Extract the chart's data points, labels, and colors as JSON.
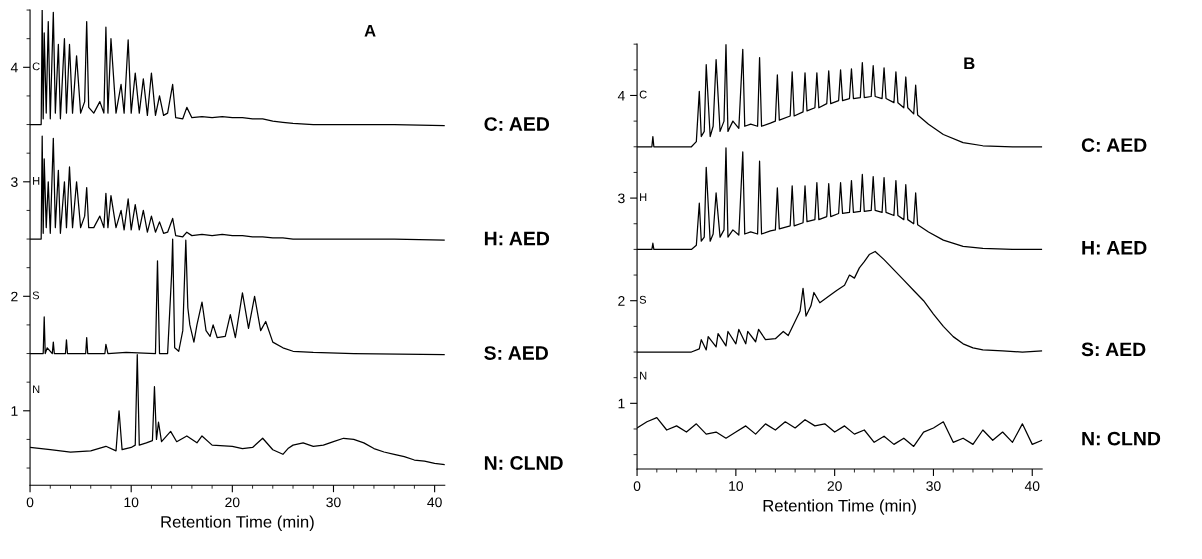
{
  "chart_data": [
    {
      "type": "line",
      "title": "A",
      "xlabel": "Retention Time (min)",
      "xlim": [
        0,
        41
      ],
      "xticks": [
        0,
        10,
        20,
        30,
        40
      ],
      "ylim": [
        0.35,
        4.5
      ],
      "yticks": [
        1,
        2,
        3,
        4
      ],
      "grid": false,
      "legend": false,
      "marker": "none",
      "line_style": "solid",
      "series": [
        {
          "name": "C: AED",
          "color": "#000000",
          "x": [
            0,
            1.1,
            1.2,
            1.3,
            1.4,
            1.6,
            1.8,
            2.0,
            2.3,
            2.5,
            2.8,
            3.0,
            3.4,
            3.6,
            3.9,
            4.2,
            4.6,
            5.0,
            5.4,
            5.6,
            5.8,
            6.3,
            6.9,
            7.3,
            7.5,
            7.7,
            8.0,
            8.5,
            9.0,
            9.3,
            9.7,
            10.0,
            10.4,
            10.8,
            11.2,
            11.6,
            12.0,
            12.4,
            12.8,
            13.2,
            13.6,
            14.1,
            14.4,
            15.1,
            15.5,
            16,
            17,
            18,
            19,
            20,
            21,
            22,
            23,
            24,
            25,
            26,
            28,
            32,
            36,
            41
          ],
          "values": [
            3.5,
            3.5,
            4.5,
            3.55,
            4.3,
            3.6,
            4.4,
            3.55,
            4.48,
            3.6,
            4.2,
            3.55,
            4.25,
            3.6,
            4.2,
            3.6,
            4.1,
            3.6,
            3.7,
            4.4,
            3.65,
            3.6,
            3.7,
            3.6,
            4.35,
            3.6,
            4.25,
            3.6,
            3.85,
            3.6,
            4.24,
            3.6,
            3.95,
            3.6,
            3.9,
            3.58,
            3.95,
            3.58,
            3.75,
            3.58,
            3.6,
            3.85,
            3.56,
            3.55,
            3.65,
            3.56,
            3.57,
            3.56,
            3.57,
            3.56,
            3.56,
            3.55,
            3.55,
            3.53,
            3.52,
            3.51,
            3.5,
            3.5,
            3.5,
            3.49
          ]
        },
        {
          "name": "H: AED",
          "color": "#000000",
          "x": [
            0,
            1.1,
            1.2,
            1.3,
            1.4,
            1.6,
            1.8,
            2.0,
            2.3,
            2.5,
            2.8,
            3.0,
            3.4,
            3.6,
            3.9,
            4.2,
            4.6,
            5.0,
            5.4,
            5.6,
            5.8,
            6.3,
            6.9,
            7.3,
            7.5,
            7.7,
            8.0,
            8.5,
            9.0,
            9.3,
            9.7,
            10.0,
            10.4,
            10.8,
            11.2,
            11.6,
            12.0,
            12.4,
            12.8,
            13.2,
            13.6,
            14.1,
            14.4,
            15.1,
            15.5,
            16,
            17,
            18,
            19,
            20,
            21,
            22,
            23,
            24,
            25,
            26,
            28,
            32,
            36,
            41
          ],
          "values": [
            2.5,
            2.5,
            3.4,
            2.55,
            3.2,
            2.6,
            3.0,
            2.55,
            3.38,
            2.6,
            3.1,
            2.55,
            3.0,
            2.6,
            3.13,
            2.6,
            3.0,
            2.6,
            2.7,
            2.95,
            2.6,
            2.6,
            2.7,
            2.6,
            2.9,
            2.6,
            2.88,
            2.6,
            2.75,
            2.58,
            2.85,
            2.58,
            2.8,
            2.58,
            2.75,
            2.56,
            2.7,
            2.56,
            2.65,
            2.55,
            2.56,
            2.68,
            2.53,
            2.52,
            2.56,
            2.53,
            2.54,
            2.53,
            2.54,
            2.53,
            2.53,
            2.52,
            2.52,
            2.51,
            2.51,
            2.5,
            2.5,
            2.5,
            2.5,
            2.49
          ]
        },
        {
          "name": "S: AED",
          "color": "#000000",
          "x": [
            0,
            1.3,
            1.4,
            1.5,
            1.7,
            2.2,
            2.3,
            2.4,
            3.5,
            3.6,
            3.7,
            5.5,
            5.6,
            5.7,
            7.4,
            7.5,
            7.7,
            9.5,
            12.4,
            12.6,
            12.8,
            13.6,
            14.0,
            14.1,
            14.3,
            14.7,
            15.1,
            15.4,
            15.6,
            15.8,
            16.2,
            16.5,
            17.0,
            17.4,
            17.8,
            18.1,
            18.5,
            19.3,
            19.8,
            20.3,
            21.0,
            21.6,
            22.2,
            22.8,
            23.3,
            24.0,
            25,
            26,
            28,
            32,
            41
          ],
          "values": [
            1.5,
            1.5,
            1.82,
            1.5,
            1.55,
            1.5,
            1.6,
            1.5,
            1.5,
            1.62,
            1.5,
            1.5,
            1.64,
            1.5,
            1.5,
            1.58,
            1.5,
            1.51,
            1.5,
            2.31,
            1.5,
            1.5,
            2.2,
            2.5,
            1.55,
            1.52,
            1.7,
            2.49,
            1.9,
            1.75,
            1.6,
            1.75,
            1.95,
            1.7,
            1.65,
            1.75,
            1.64,
            1.65,
            1.84,
            1.64,
            2.03,
            1.72,
            2.0,
            1.7,
            1.78,
            1.6,
            1.55,
            1.52,
            1.51,
            1.5,
            1.49
          ]
        },
        {
          "name": "N: CLND",
          "color": "#000000",
          "x": [
            0,
            2,
            4,
            6,
            7.5,
            8.5,
            8.8,
            9.1,
            10.0,
            10.4,
            10.6,
            10.8,
            11.5,
            12.1,
            12.3,
            12.5,
            12.7,
            13.0,
            13.9,
            14.5,
            15.5,
            16.5,
            17,
            18,
            20,
            21,
            22,
            23,
            24,
            25,
            25.5,
            26,
            27,
            28,
            29,
            30,
            31,
            32,
            33,
            34,
            35,
            36,
            37,
            38,
            39,
            40,
            41
          ],
          "values": [
            0.68,
            0.66,
            0.64,
            0.65,
            0.69,
            0.65,
            1.0,
            0.66,
            0.68,
            0.7,
            1.49,
            0.7,
            0.72,
            0.74,
            1.21,
            0.75,
            0.9,
            0.73,
            0.82,
            0.73,
            0.78,
            0.72,
            0.78,
            0.7,
            0.69,
            0.67,
            0.68,
            0.76,
            0.66,
            0.62,
            0.67,
            0.7,
            0.72,
            0.69,
            0.7,
            0.73,
            0.76,
            0.75,
            0.72,
            0.67,
            0.64,
            0.62,
            0.6,
            0.57,
            0.56,
            0.54,
            0.53
          ]
        }
      ],
      "annotations": [
        "C",
        "H",
        "S",
        "N"
      ]
    },
    {
      "type": "line",
      "title": "B",
      "xlabel": "Retention Time (min)",
      "xlim": [
        0,
        41
      ],
      "xticks": [
        0,
        10,
        20,
        30,
        40
      ],
      "ylim": [
        0.36,
        4.5
      ],
      "yticks": [
        1,
        2,
        3,
        4
      ],
      "grid": false,
      "legend": false,
      "marker": "none",
      "line_style": "solid",
      "series": [
        {
          "name": "C: AED",
          "color": "#000000",
          "x": [
            0,
            1.5,
            1.6,
            1.7,
            5.5,
            6.0,
            6.3,
            6.5,
            6.8,
            7.0,
            7.4,
            7.7,
            8.0,
            8.4,
            8.8,
            9.0,
            9.2,
            9.7,
            10.3,
            10.7,
            10.9,
            11.5,
            12.2,
            12.4,
            12.6,
            13.5,
            14.0,
            14.2,
            14.4,
            15.5,
            15.7,
            15.9,
            16.8,
            17.0,
            17.2,
            18.0,
            18.2,
            18.4,
            19.2,
            19.4,
            19.6,
            20.4,
            20.6,
            20.8,
            21.5,
            21.7,
            21.9,
            22.6,
            22.8,
            23.0,
            23.7,
            23.9,
            24.1,
            24.8,
            25.0,
            25.2,
            26.0,
            26.2,
            26.4,
            27.0,
            27.2,
            27.4,
            28.0,
            28.2,
            28.4,
            29.5,
            31,
            33,
            35,
            38,
            41
          ],
          "values": [
            3.5,
            3.5,
            3.6,
            3.5,
            3.5,
            3.55,
            4.04,
            3.6,
            3.65,
            4.3,
            3.6,
            3.7,
            4.35,
            3.65,
            3.75,
            4.5,
            3.65,
            3.75,
            3.68,
            4.45,
            3.7,
            3.72,
            3.7,
            4.37,
            3.7,
            3.73,
            3.75,
            4.2,
            3.76,
            3.8,
            4.23,
            3.8,
            3.84,
            4.22,
            3.85,
            3.88,
            4.22,
            3.88,
            3.92,
            4.24,
            3.92,
            3.95,
            4.25,
            3.95,
            3.97,
            4.26,
            3.97,
            3.98,
            4.32,
            3.98,
            3.99,
            4.29,
            3.99,
            3.97,
            4.27,
            3.97,
            3.93,
            4.23,
            3.93,
            3.88,
            4.18,
            3.88,
            3.82,
            4.1,
            3.81,
            3.72,
            3.62,
            3.54,
            3.51,
            3.5,
            3.5
          ]
        },
        {
          "name": "H: AED",
          "color": "#000000",
          "x": [
            0,
            1.5,
            1.6,
            1.7,
            5.5,
            6.0,
            6.3,
            6.5,
            6.8,
            7.0,
            7.4,
            7.7,
            8.0,
            8.4,
            8.8,
            9.0,
            9.2,
            9.7,
            10.3,
            10.7,
            10.9,
            11.5,
            12.2,
            12.4,
            12.6,
            13.5,
            14.0,
            14.2,
            14.4,
            15.5,
            15.7,
            15.9,
            16.8,
            17.0,
            17.2,
            18.0,
            18.2,
            18.4,
            19.2,
            19.4,
            19.6,
            20.4,
            20.6,
            20.8,
            21.5,
            21.7,
            21.9,
            22.6,
            22.8,
            23.0,
            23.7,
            23.9,
            24.1,
            24.8,
            25.0,
            25.2,
            26.0,
            26.2,
            26.4,
            27.0,
            27.2,
            27.4,
            28.0,
            28.2,
            28.4,
            29.5,
            31,
            33,
            35,
            38,
            41
          ],
          "values": [
            2.5,
            2.5,
            2.56,
            2.5,
            2.5,
            2.54,
            2.95,
            2.58,
            2.62,
            3.3,
            2.58,
            2.65,
            3.05,
            2.62,
            2.69,
            3.49,
            2.62,
            2.69,
            2.64,
            3.45,
            2.65,
            2.67,
            2.65,
            3.36,
            2.65,
            2.68,
            2.69,
            3.1,
            2.7,
            2.73,
            3.12,
            2.73,
            2.76,
            3.12,
            2.77,
            2.79,
            3.15,
            2.79,
            2.82,
            3.14,
            2.82,
            2.85,
            3.15,
            2.85,
            2.86,
            3.17,
            2.86,
            2.87,
            3.23,
            2.87,
            2.88,
            3.21,
            2.88,
            2.86,
            3.2,
            2.86,
            2.83,
            3.17,
            2.83,
            2.79,
            3.13,
            2.79,
            2.75,
            3.05,
            2.74,
            2.67,
            2.59,
            2.53,
            2.51,
            2.5,
            2.5
          ]
        },
        {
          "name": "S: AED",
          "color": "#000000",
          "x": [
            0,
            5.5,
            6.3,
            6.5,
            7.0,
            7.2,
            8,
            8.2,
            9,
            9.2,
            10,
            10.3,
            11,
            11.2,
            12,
            12.3,
            13,
            14,
            14.8,
            15.3,
            16.0,
            16.5,
            16.8,
            17.1,
            17.6,
            17.9,
            18.5,
            19.5,
            20.2,
            21.0,
            21.5,
            22.0,
            22.5,
            23.0,
            23.5,
            24.1,
            25,
            26,
            27,
            28,
            29,
            30,
            31,
            32,
            33,
            34,
            35,
            37,
            39,
            41
          ],
          "values": [
            1.5,
            1.5,
            1.53,
            1.62,
            1.52,
            1.65,
            1.55,
            1.68,
            1.56,
            1.7,
            1.58,
            1.72,
            1.58,
            1.7,
            1.6,
            1.72,
            1.62,
            1.63,
            1.7,
            1.66,
            1.8,
            1.9,
            2.12,
            1.85,
            1.95,
            2.08,
            1.98,
            2.05,
            2.1,
            2.15,
            2.25,
            2.22,
            2.32,
            2.38,
            2.45,
            2.48,
            2.4,
            2.3,
            2.2,
            2.1,
            2.0,
            1.87,
            1.75,
            1.65,
            1.58,
            1.54,
            1.52,
            1.51,
            1.5,
            1.51
          ]
        },
        {
          "name": "N: CLND",
          "color": "#000000",
          "x": [
            0,
            1,
            2,
            3,
            4,
            5,
            6,
            7,
            8,
            9,
            10,
            11,
            12,
            13,
            14,
            15,
            16,
            17,
            18,
            19,
            20,
            21,
            22,
            23,
            24,
            25,
            26,
            27,
            28,
            29,
            30,
            31,
            32,
            33,
            34,
            35,
            36,
            37,
            38,
            39,
            40,
            41
          ],
          "values": [
            0.76,
            0.82,
            0.86,
            0.74,
            0.78,
            0.72,
            0.8,
            0.7,
            0.72,
            0.66,
            0.72,
            0.78,
            0.7,
            0.8,
            0.74,
            0.82,
            0.76,
            0.84,
            0.78,
            0.8,
            0.72,
            0.78,
            0.7,
            0.74,
            0.62,
            0.68,
            0.6,
            0.66,
            0.58,
            0.72,
            0.76,
            0.82,
            0.62,
            0.66,
            0.6,
            0.74,
            0.64,
            0.72,
            0.62,
            0.8,
            0.6,
            0.64
          ]
        }
      ],
      "annotations": [
        "C",
        "H",
        "S",
        "N"
      ]
    }
  ]
}
